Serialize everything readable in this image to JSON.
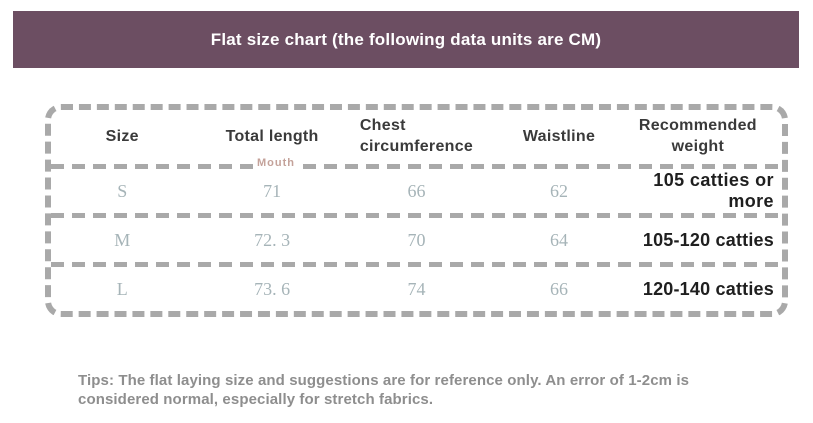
{
  "banner": {
    "title": "Flat size chart (the following data units are CM)",
    "bg_color": "#6c4e62",
    "text_color": "#ffffff"
  },
  "table": {
    "headers": {
      "size": "Size",
      "total_length": "Total length",
      "chest_line1": "Chest",
      "chest_line2": "circumference",
      "waistline": "Waistline",
      "weight_line1": "Recommended",
      "weight_line2": "weight"
    },
    "watermark": "Mouth",
    "rows": [
      {
        "size": "S",
        "total_length": "71",
        "chest": "66",
        "waistline": "62",
        "weight": "105 catties or more"
      },
      {
        "size": "M",
        "total_length": "72. 3",
        "chest": "70",
        "waistline": "64",
        "weight": "105-120 catties"
      },
      {
        "size": "L",
        "total_length": "73. 6",
        "chest": "74",
        "waistline": "66",
        "weight": "120-140 catties"
      }
    ],
    "border_color": "#a9a9a9",
    "value_text_color": "#a6b4b8",
    "header_text_color": "#3a3a3a",
    "weight_text_color": "#1f1f1f",
    "watermark_color": "#c4a29a"
  },
  "tips": {
    "text": "Tips: The flat laying size and suggestions are for reference only. An error of 1-2cm is considered normal, especially for stretch fabrics.",
    "text_color": "#8e8e8e"
  }
}
